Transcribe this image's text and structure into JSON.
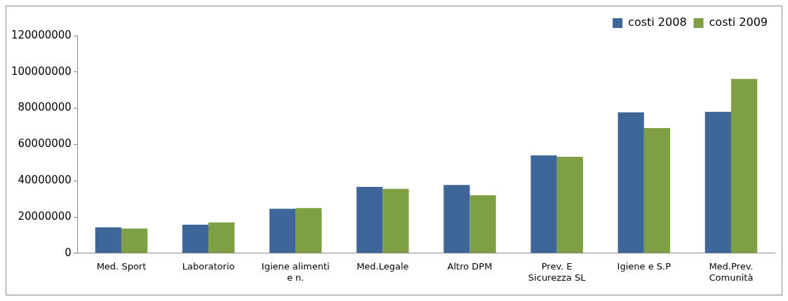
{
  "chart_data": {
    "type": "bar",
    "categories": [
      "Med. Sport",
      "Laboratorio",
      "Igiene alimenti e n.",
      "Med.Legale",
      "Altro DPM",
      "Prev. E Sicurezza SL",
      "Igiene e S.P",
      "Med.Prev. Comunità"
    ],
    "series": [
      {
        "name": "costi 2008",
        "color": "#3e6699",
        "values": [
          14300000,
          15800000,
          24500000,
          36600000,
          37700000,
          54000000,
          77700000,
          78000000
        ]
      },
      {
        "name": "costi 2009",
        "color": "#7f9f45",
        "values": [
          13600000,
          17000000,
          24900000,
          35500000,
          32000000,
          53200000,
          69000000,
          96200000
        ]
      }
    ],
    "ylim": [
      0,
      120000000
    ],
    "yticks": [
      0,
      20000000,
      40000000,
      60000000,
      80000000,
      100000000,
      120000000
    ],
    "grid": false,
    "legend": "top right"
  }
}
